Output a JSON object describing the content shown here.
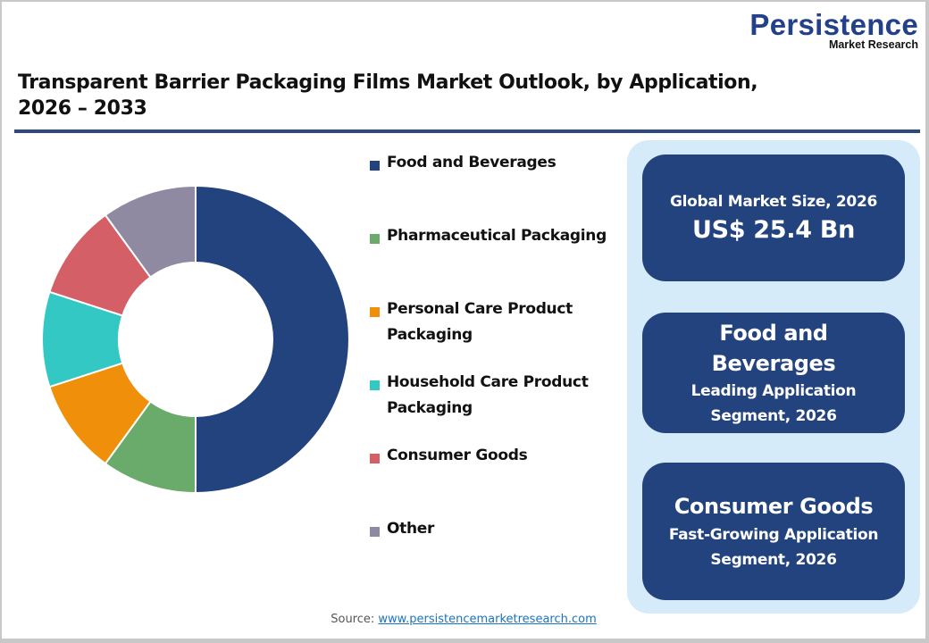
{
  "logo": {
    "name": "Persistence",
    "subtitle": "Market Research"
  },
  "title": {
    "line1": "Transparent Barrier Packaging Films Market Outlook, by Application,",
    "line2": "2026 – 2033"
  },
  "legend": [
    {
      "label": "Food and Beverages",
      "color": "#23437f"
    },
    {
      "label": "Pharmaceutical Packaging",
      "color": "#6aaa6a"
    },
    {
      "label": "Personal Care Product Packaging",
      "color": "#f08f0a"
    },
    {
      "label": "Household Care Product Packaging",
      "color": "#33c8c4"
    },
    {
      "label": "Consumer Goods",
      "color": "#d45f66"
    },
    {
      "label": "Other",
      "color": "#8f8aa2"
    }
  ],
  "cards": {
    "market_size": {
      "label": "Global Market Size, 2026",
      "value": "US$ 25.4 Bn"
    },
    "leading": {
      "name_line1": "Food and",
      "name_line2": "Beverages",
      "desc_line1": "Leading Application",
      "desc_line2": "Segment, 2026"
    },
    "fastest": {
      "name": "Consumer Goods",
      "desc_line1": "Fast-Growing Application",
      "desc_line2": "Segment, 2026"
    }
  },
  "source": {
    "label": "Source:",
    "link": "www.persistencemarketresearch.com"
  },
  "chart_data": {
    "type": "pie",
    "subtype": "donut",
    "title": "Transparent Barrier Packaging Films Market Outlook, by Application, 2026 – 2033",
    "categories": [
      "Food and Beverages",
      "Pharmaceutical Packaging",
      "Personal Care Product Packaging",
      "Household Care Product Packaging",
      "Consumer Goods",
      "Other"
    ],
    "values": [
      50,
      10,
      10,
      10,
      10,
      10
    ],
    "colors": [
      "#23437f",
      "#6aaa6a",
      "#f08f0a",
      "#33c8c4",
      "#d45f66",
      "#8f8aa2"
    ],
    "start_angle_deg": 0,
    "direction": "clockwise",
    "legend_position": "right",
    "data_labels": false
  }
}
